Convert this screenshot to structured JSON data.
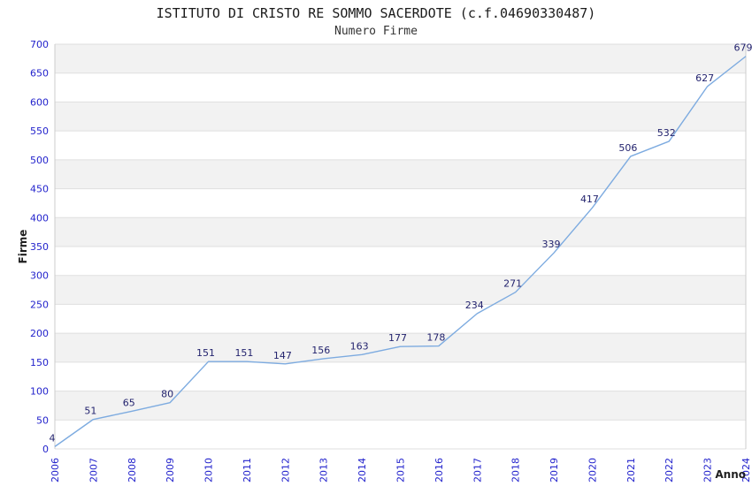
{
  "title": "ISTITUTO DI CRISTO RE SOMMO SACERDOTE (c.f.04690330487)",
  "subtitle": "Numero Firme",
  "chart_data": {
    "type": "line",
    "title": "ISTITUTO DI CRISTO RE SOMMO SACERDOTE (c.f.04690330487)",
    "subtitle": "Numero Firme",
    "xlabel": "Anno",
    "ylabel": "Firme",
    "categories": [
      "2006",
      "2007",
      "2008",
      "2009",
      "2010",
      "2011",
      "2012",
      "2013",
      "2014",
      "2015",
      "2016",
      "2017",
      "2018",
      "2019",
      "2020",
      "2021",
      "2022",
      "2023",
      "2024"
    ],
    "values": [
      4,
      51,
      65,
      80,
      151,
      151,
      147,
      156,
      163,
      177,
      178,
      234,
      271,
      339,
      417,
      506,
      532,
      627,
      679
    ],
    "ylim": [
      0,
      700
    ],
    "ytick_step": 50,
    "yticks": [
      0,
      50,
      100,
      150,
      200,
      250,
      300,
      350,
      400,
      450,
      500,
      550,
      600,
      650,
      700
    ],
    "grid": true,
    "legend": "none",
    "data_labels": true,
    "colors": {
      "line": "#7dabe0",
      "tick_label": "#2323cc",
      "value_label": "#23236e",
      "axis_title": "#1f1f1f",
      "band": "#f2f2f2",
      "grid": "#dfdfdf",
      "border": "#cccccc",
      "plot_background": "#ffffff"
    }
  }
}
